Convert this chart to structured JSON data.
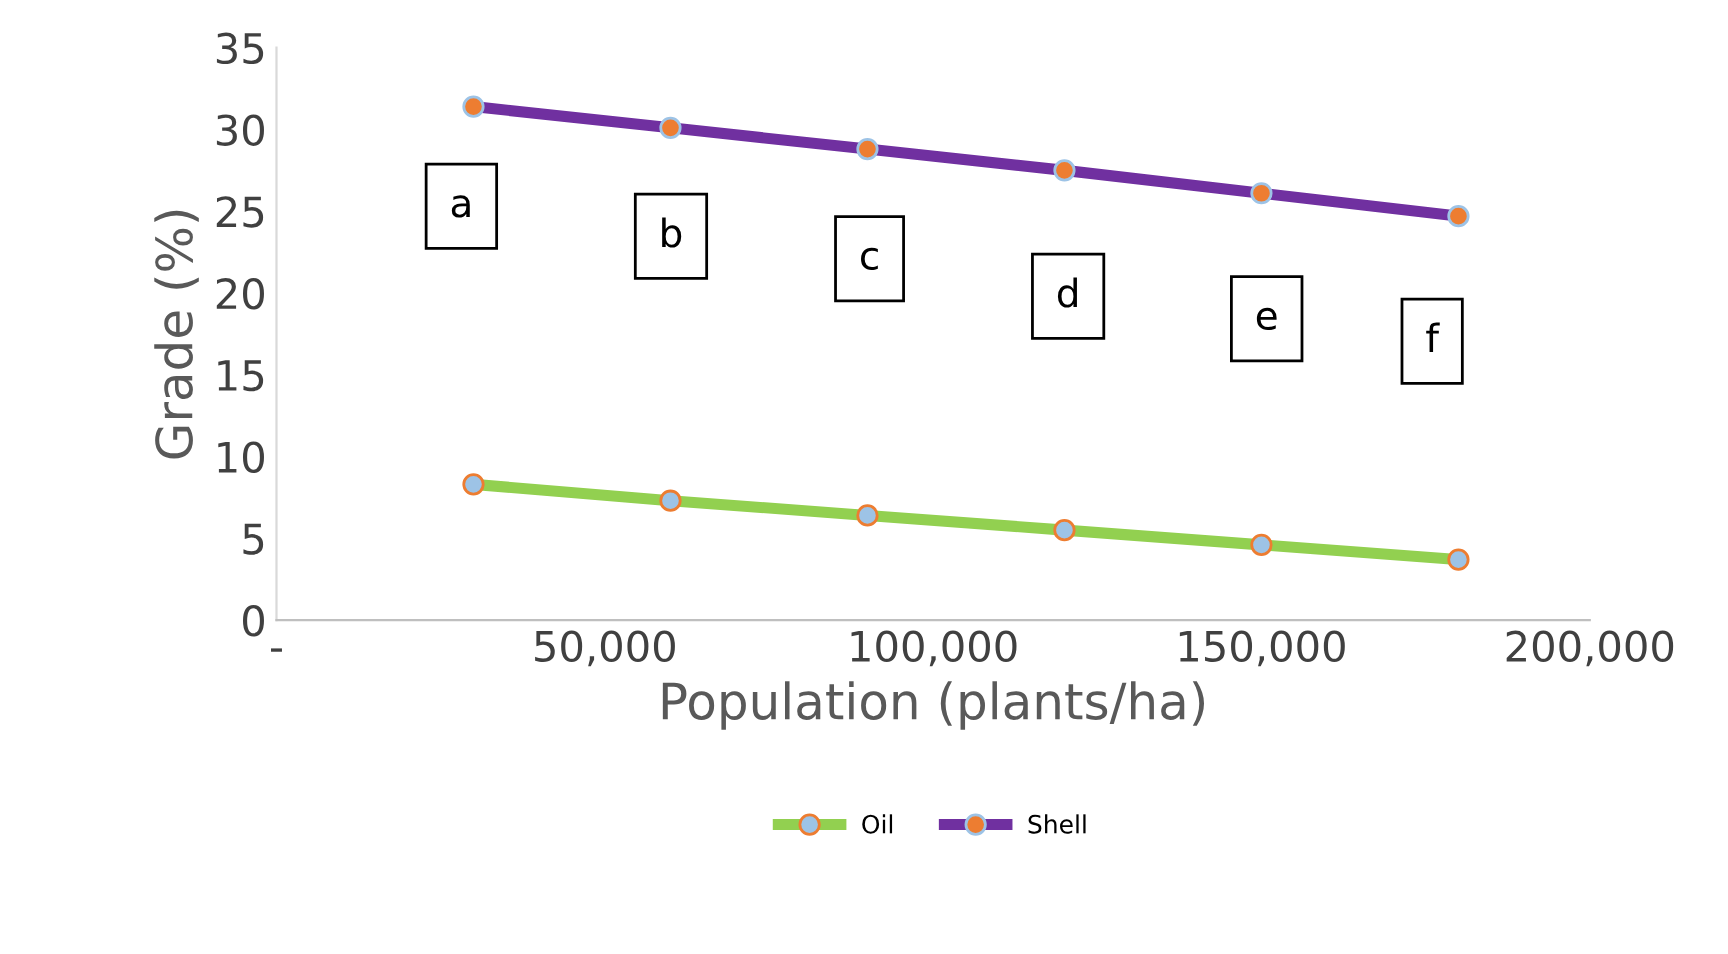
{
  "chart_data": {
    "type": "line",
    "xlabel": "Population (plants/ha)",
    "ylabel": "Grade (%)",
    "x": [
      30000,
      60000,
      90000,
      120000,
      150000,
      180000
    ],
    "series": [
      {
        "name": "Oil",
        "color": "#92d050",
        "values": [
          8.3,
          7.3,
          6.4,
          5.5,
          4.6,
          3.7
        ]
      },
      {
        "name": "Shell",
        "color": "#7030a0",
        "values": [
          31.4,
          30.1,
          28.8,
          27.5,
          26.1,
          24.7
        ]
      }
    ],
    "xlim": [
      0,
      200000
    ],
    "xticks": [
      {
        "value": 0,
        "label": "-"
      },
      {
        "value": 50000,
        "label": "50,000"
      },
      {
        "value": 100000,
        "label": "100,000"
      },
      {
        "value": 150000,
        "label": "150,000"
      },
      {
        "value": 200000,
        "label": "200,000"
      }
    ],
    "ylim": [
      0,
      35
    ],
    "yticks": [
      0,
      5,
      10,
      15,
      20,
      25,
      30,
      35
    ],
    "annotations": [
      "a",
      "b",
      "c",
      "d",
      "e",
      "f"
    ],
    "marker": "circle",
    "line_style": "solid",
    "legend": "bottom",
    "grid": false
  }
}
